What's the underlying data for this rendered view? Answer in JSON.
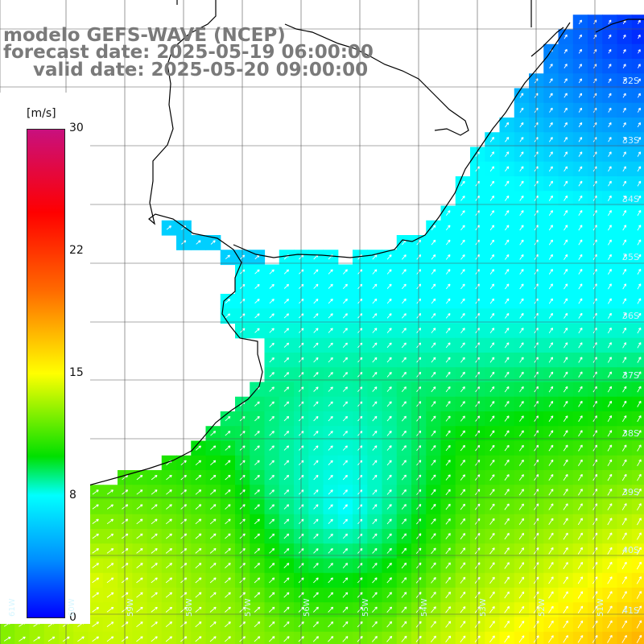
{
  "title": {
    "line1": "modelo GEFS-WAVE (NCEP)",
    "line2": "forecast date: 2025-05-19 06:00:00",
    "line3": "valid date: 2025-05-20 09:00:00"
  },
  "legend": {
    "unit": "[m/s]",
    "ticks": [
      "30",
      "22",
      "15",
      "8",
      "0"
    ],
    "tick_values": [
      30,
      22,
      15,
      8,
      0
    ],
    "range": [
      0,
      30
    ],
    "color_stops": [
      {
        "value": 30,
        "color": "#c8107e"
      },
      {
        "value": 25,
        "color": "#ff0000"
      },
      {
        "value": 20,
        "color": "#ff6a00"
      },
      {
        "value": 15,
        "color": "#ffff00"
      },
      {
        "value": 10,
        "color": "#00e000"
      },
      {
        "value": 7.5,
        "color": "#00ffff"
      },
      {
        "value": 4,
        "color": "#0090ff"
      },
      {
        "value": 0,
        "color": "#0000ff"
      }
    ]
  },
  "latitude_labels": [
    "32S",
    "33S",
    "34S",
    "35S",
    "36S",
    "37S",
    "38S",
    "39S",
    "40S",
    "41S"
  ],
  "longitude_labels": [
    "61W",
    "60W",
    "59W",
    "58W",
    "57W",
    "56W",
    "55W",
    "54W",
    "53W",
    "52W",
    "51W"
  ],
  "colors": {
    "land": "#ffffff",
    "coast": "#000000",
    "grid": "#000000",
    "arrows": "#ffffff",
    "title_text": "#7a7a7a"
  }
}
